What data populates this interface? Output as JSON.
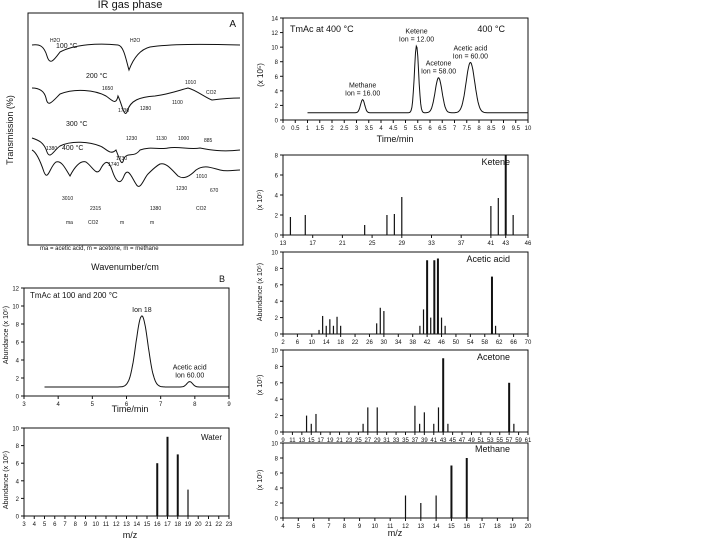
{
  "figure": {
    "top_title": "IR gas phase",
    "wavenumber_label": "Wavenumber/cm",
    "transmission_label": "Transmission (%)",
    "panel_a": "A",
    "panel_b": "B",
    "abundance_label": "Abundance (x 10⁵)",
    "time_label": "Time/min",
    "mz_label": "m/z",
    "ten5": "(x 10⁵)",
    "legend_note": "ma = acetic acid, m = acetone, m = methane"
  },
  "chart_data": [
    {
      "id": "ir_spectra",
      "type": "line",
      "title": "IR gas phase",
      "xlabel": "Wavenumber/cm",
      "ylabel": "Transmission (%)",
      "series": [
        {
          "name": "100 °C",
          "peaks": [
            "H2O",
            "H2O"
          ]
        },
        {
          "name": "200 °C",
          "peaks": [
            "1650",
            "1730",
            "1280",
            "1100",
            "1010",
            "CO2"
          ]
        },
        {
          "name": "300 °C",
          "peaks": [
            "1380",
            "1740",
            "1230",
            "1130",
            "1000",
            "885"
          ]
        },
        {
          "name": "400 °C",
          "peaks": [
            "3010",
            "2315",
            "1730",
            "1380",
            "1230",
            "1010",
            "670"
          ]
        }
      ],
      "annotations": [
        "CO2",
        "CO2",
        "ma",
        "m",
        "m"
      ]
    },
    {
      "id": "tic_400",
      "type": "line",
      "title": "TmAc at 400 °C",
      "badge": "400 °C",
      "xlabel": "Time/min",
      "ylabel": "(x 10⁵)",
      "xlim": [
        0,
        10
      ],
      "ylim": [
        0,
        14
      ],
      "x_ticks": [
        0,
        0.5,
        1,
        1.5,
        2,
        2.5,
        3,
        3.5,
        4,
        4.5,
        5,
        5.5,
        6,
        6.5,
        7,
        7.5,
        8,
        8.5,
        9,
        9.5,
        10
      ],
      "y_ticks": [
        0,
        2,
        4,
        6,
        8,
        10,
        12,
        14
      ],
      "peaks": [
        {
          "label": "Methane\nIon = 16.00",
          "x": 3.25,
          "y": 2.8,
          "width": 0.12
        },
        {
          "label": "Ketene\nIon = 12.00",
          "x": 5.45,
          "y": 10.2,
          "width": 0.12
        },
        {
          "label": "Acetone\nIon = 58.00",
          "x": 6.35,
          "y": 5.8,
          "width": 0.2
        },
        {
          "label": "Acetic acid\nIon = 60.00",
          "x": 7.65,
          "y": 7.9,
          "width": 0.25
        }
      ],
      "baseline": 1.0
    },
    {
      "id": "ketene_ms",
      "type": "bar",
      "name": "Ketene",
      "xlabel": "",
      "ylabel": "(x 10⁵)",
      "xlim": [
        13,
        46
      ],
      "ylim": [
        0,
        8
      ],
      "x_ticks": [
        13,
        17,
        21,
        25,
        29,
        33,
        37,
        41,
        43,
        46
      ],
      "y_ticks": [
        0,
        2,
        4,
        6,
        8
      ],
      "x": [
        14,
        16,
        24,
        27,
        28,
        29,
        41,
        42,
        43,
        44
      ],
      "values": [
        1.8,
        2.0,
        1.0,
        2.0,
        2.1,
        3.8,
        2.9,
        3.7,
        8.0,
        2.0
      ]
    },
    {
      "id": "acetic_ms",
      "type": "bar",
      "name": "Acetic acid",
      "ylabel": "Abundance (x 10⁵)",
      "xlim": [
        2,
        70
      ],
      "ylim": [
        0,
        10
      ],
      "x_ticks": [
        2,
        6,
        10,
        14,
        18,
        22,
        26,
        30,
        34,
        38,
        42,
        46,
        50,
        54,
        58,
        62,
        66,
        70
      ],
      "y_ticks": [
        0,
        2,
        4,
        6,
        8,
        10
      ],
      "x": [
        12,
        13,
        14,
        15,
        16,
        17,
        18,
        28,
        29,
        30,
        40,
        41,
        42,
        43,
        44,
        45,
        46,
        47,
        60,
        61
      ],
      "values": [
        0.5,
        2.2,
        1.0,
        1.8,
        1.0,
        2.1,
        1.0,
        1.3,
        3.2,
        2.8,
        1.0,
        3.0,
        9.0,
        2.0,
        9.0,
        9.2,
        2.0,
        1.0,
        7.0,
        1.0
      ]
    },
    {
      "id": "acetone_ms",
      "type": "bar",
      "name": "Acetone",
      "ylabel": "(x 10⁵)",
      "xlim": [
        9,
        61
      ],
      "ylim": [
        0,
        10
      ],
      "x_ticks": [
        9,
        11,
        13,
        15,
        17,
        19,
        21,
        23,
        25,
        27,
        29,
        31,
        33,
        35,
        37,
        39,
        41,
        43,
        45,
        47,
        49,
        51,
        53,
        55,
        57,
        59,
        61
      ],
      "y_ticks": [
        0,
        2,
        4,
        6,
        8,
        10
      ],
      "x": [
        14,
        15,
        16,
        26,
        27,
        29,
        37,
        38,
        39,
        41,
        42,
        43,
        44,
        57,
        58
      ],
      "values": [
        2.0,
        1.0,
        2.2,
        1.0,
        3.0,
        3.0,
        3.2,
        1.0,
        2.4,
        1.0,
        3.0,
        9.0,
        1.0,
        6.0,
        1.0
      ]
    },
    {
      "id": "methane_ms",
      "type": "bar",
      "name": "Methane",
      "xlabel": "m/z",
      "ylabel": "(x 10⁵)",
      "xlim": [
        4,
        20
      ],
      "ylim": [
        0,
        10
      ],
      "x_ticks": [
        4,
        5,
        6,
        7,
        8,
        9,
        10,
        11,
        12,
        13,
        14,
        15,
        16,
        17,
        18,
        19,
        20
      ],
      "y_ticks": [
        0,
        2,
        4,
        6,
        8,
        10
      ],
      "x": [
        12,
        13,
        14,
        15,
        16
      ],
      "values": [
        3.0,
        2.0,
        3.0,
        7.0,
        8.0
      ]
    },
    {
      "id": "tic_low",
      "type": "line",
      "title": "TmAc at 100 and 200 °C",
      "xlabel": "Time/min",
      "ylabel": "Abundance (x 10⁵)",
      "xlim": [
        3,
        9
      ],
      "ylim": [
        0,
        12
      ],
      "x_ticks": [
        3,
        4,
        5,
        6,
        7,
        8,
        9
      ],
      "y_ticks": [
        0,
        2,
        4,
        6,
        8,
        10,
        12
      ],
      "peaks": [
        {
          "label": "Ion 18",
          "x": 6.45,
          "y": 8.9,
          "width": 0.25
        },
        {
          "label": "Acetic acid\nIon 60.00",
          "x": 7.85,
          "y": 1.6,
          "width": 0.12
        }
      ],
      "baseline": 1.0
    },
    {
      "id": "water_ms",
      "type": "bar",
      "name": "Water",
      "xlabel": "m/z",
      "ylabel": "Abundance (x 10⁵)",
      "xlim": [
        3,
        23
      ],
      "ylim": [
        0,
        10
      ],
      "x_ticks": [
        3,
        4,
        5,
        6,
        7,
        8,
        9,
        10,
        11,
        12,
        13,
        14,
        15,
        16,
        17,
        18,
        19,
        20,
        21,
        22,
        23
      ],
      "y_ticks": [
        0,
        2,
        4,
        6,
        8,
        10
      ],
      "x": [
        16,
        17,
        18,
        19
      ],
      "values": [
        6.0,
        9.0,
        7.0,
        3.0
      ]
    }
  ]
}
